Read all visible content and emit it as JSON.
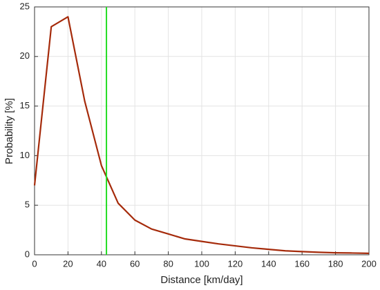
{
  "chart_data": {
    "type": "line",
    "xlabel": "Distance [km/day]",
    "ylabel": "Probability [%]",
    "x": [
      0,
      10,
      20,
      30,
      40,
      50,
      60,
      70,
      80,
      90,
      100,
      110,
      120,
      130,
      140,
      150,
      160,
      170,
      180,
      190,
      200
    ],
    "values": [
      7,
      23,
      24,
      15.5,
      9,
      5.2,
      3.5,
      2.6,
      2.1,
      1.6,
      1.35,
      1.1,
      0.9,
      0.7,
      0.55,
      0.4,
      0.32,
      0.25,
      0.2,
      0.18,
      0.15
    ],
    "color": "#a52a0a",
    "vline": {
      "x": 43,
      "color": "#22dd22"
    },
    "xlim": [
      0,
      200
    ],
    "xticks": [
      0,
      20,
      40,
      60,
      80,
      100,
      120,
      140,
      160,
      180,
      200
    ],
    "ylim": [
      0,
      25
    ],
    "yticks": [
      0,
      5,
      10,
      15,
      20,
      25
    ],
    "grid": true
  }
}
